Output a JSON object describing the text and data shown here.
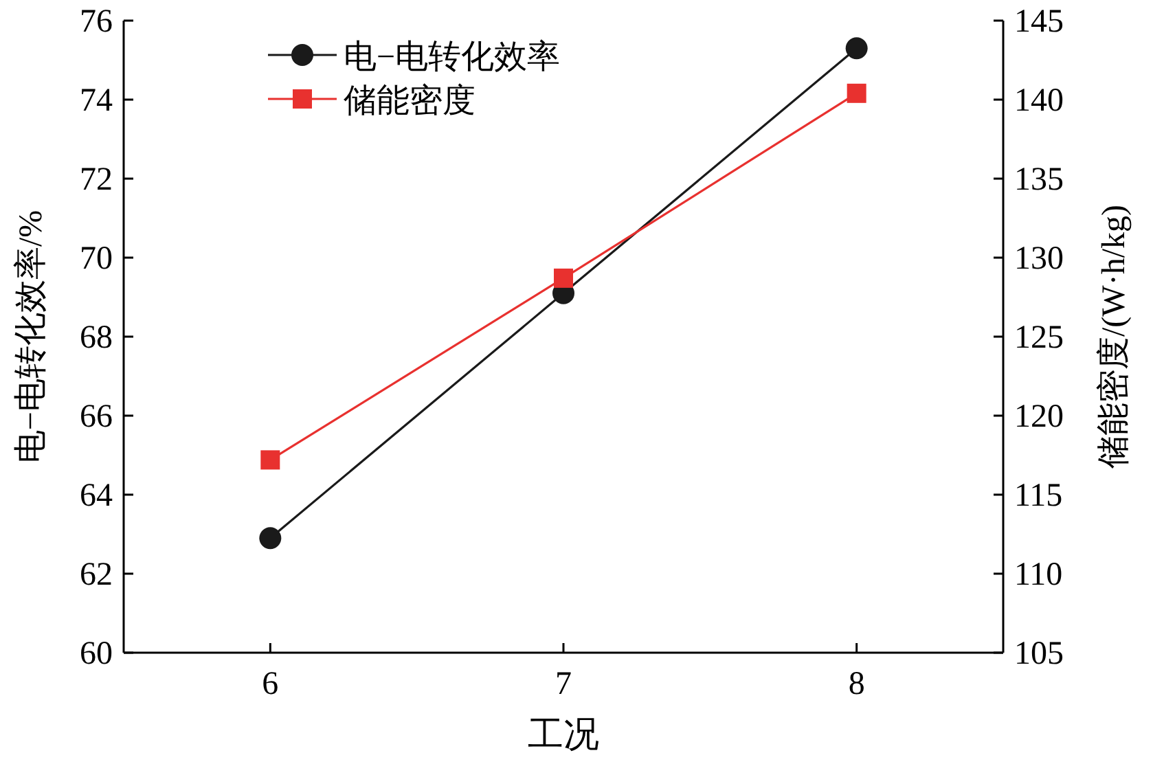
{
  "chart_data": {
    "type": "line",
    "xlabel": "工况",
    "ylabel": "电−电转化效率/%",
    "y2label": "储能密度/(W·h/kg)",
    "x": [
      6,
      7,
      8
    ],
    "xlim": [
      5.5,
      8.5
    ],
    "xticks": [
      6,
      7,
      8
    ],
    "ylim": [
      60,
      76
    ],
    "yticks": [
      60,
      62,
      64,
      66,
      68,
      70,
      72,
      74,
      76
    ],
    "y2lim": [
      105,
      145
    ],
    "y2ticks": [
      105,
      110,
      115,
      120,
      125,
      130,
      135,
      140,
      145
    ],
    "legend": "top left",
    "grid": false,
    "line_style": "solid",
    "series": [
      {
        "name": "电−电转化效率",
        "color": "#1a1a1a",
        "marker": "circle",
        "values": [
          62.9,
          69.1,
          75.3
        ]
      },
      {
        "name": "储能密度",
        "color": "#e8312f",
        "marker": "square",
        "axis": "y2",
        "values": [
          117.2,
          128.7,
          140.4
        ]
      }
    ]
  }
}
